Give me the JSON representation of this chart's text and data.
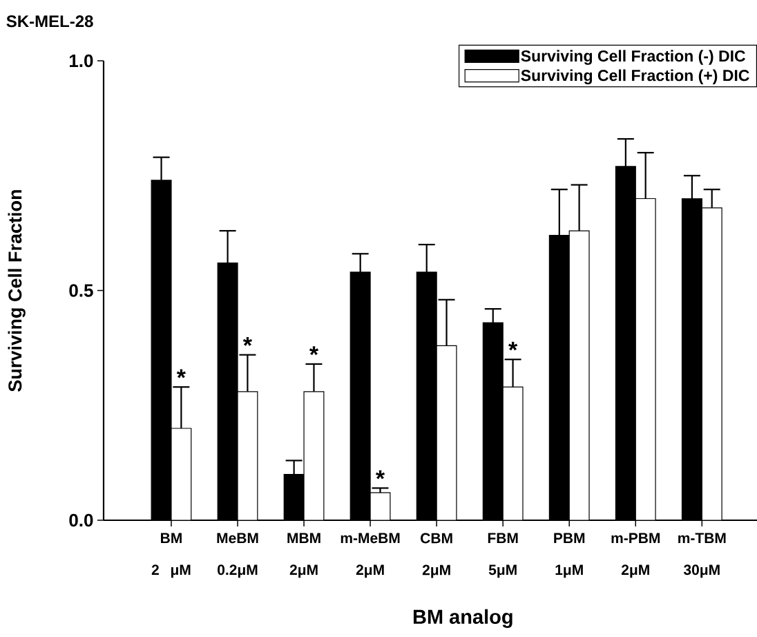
{
  "chart_data": {
    "type": "bar",
    "title": "SK-MEL-28",
    "xlabel": "BM analog",
    "ylabel": "Surviving Cell Fraction",
    "categories": [
      "BM 2 μM",
      "MeBM 0.2μM",
      "MBM 2μM",
      "m-MeBM 2μM",
      "CBM 2μM",
      "FBM 5μM",
      "PBM 1μM",
      "m-PBM 2μM",
      "m-TBM 30μM"
    ],
    "series": [
      {
        "name": "Surviving Cell Fraction (-) DIC",
        "color": "#000000",
        "values": [
          0.74,
          0.56,
          0.1,
          0.54,
          0.54,
          0.43,
          0.62,
          0.77,
          0.7
        ],
        "errors": [
          [
            0.74,
            0.79
          ],
          [
            0.56,
            0.63
          ],
          [
            0.1,
            0.13
          ],
          [
            0.54,
            0.58
          ],
          [
            0.54,
            0.6
          ],
          [
            0.43,
            0.46
          ],
          [
            0.62,
            0.72
          ],
          [
            0.77,
            0.83
          ],
          [
            0.7,
            0.75
          ]
        ]
      },
      {
        "name": "Surviving Cell Fraction (+) DIC",
        "color": "#ffffff",
        "values": [
          0.2,
          0.28,
          0.28,
          0.06,
          0.38,
          0.29,
          0.63,
          0.7,
          0.68
        ],
        "errors": [
          [
            0.2,
            0.29
          ],
          [
            0.28,
            0.36
          ],
          [
            0.28,
            0.34
          ],
          [
            0.06,
            0.07
          ],
          [
            0.38,
            0.48
          ],
          [
            0.29,
            0.35
          ],
          [
            0.63,
            0.73
          ],
          [
            0.7,
            0.8
          ],
          [
            0.68,
            0.72
          ]
        ]
      }
    ],
    "ylim": [
      0,
      1
    ],
    "yticks": [
      {
        "value": 0,
        "label": "0.0"
      },
      {
        "value": 0.5,
        "label": "0.5"
      },
      {
        "value": 1,
        "label": "1.0"
      }
    ],
    "annotations": [
      {
        "text": "*",
        "x": "BM 2 μM",
        "y": 0.29
      },
      {
        "text": "*",
        "x": "MeBM 0.2μM",
        "y": 0.36
      },
      {
        "text": "*",
        "x": "MBM 2μM",
        "y": 0.34
      },
      {
        "text": "*",
        "x": "m-MeBM 2μM",
        "y": 0.07
      },
      {
        "text": "*",
        "x": "FBM 5μM",
        "y": 0.35
      }
    ],
    "legend": "top right",
    "grid": false
  }
}
